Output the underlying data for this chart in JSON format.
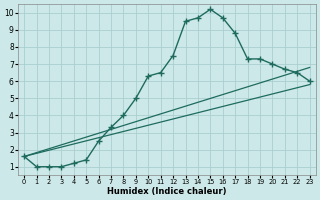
{
  "background_color": "#cce8e8",
  "grid_color": "#aacfcf",
  "line_color": "#1e6b5e",
  "xlabel": "Humidex (Indice chaleur)",
  "xlim": [
    -0.5,
    23.5
  ],
  "ylim": [
    0.5,
    10.5
  ],
  "curve_x": [
    0,
    1,
    2,
    3,
    4,
    5,
    6,
    7,
    8,
    9,
    10,
    11,
    12,
    13,
    14,
    15,
    16,
    17,
    18,
    19,
    20,
    21,
    22,
    23
  ],
  "curve_y": [
    1.6,
    1.0,
    1.0,
    1.0,
    1.2,
    1.4,
    2.5,
    3.3,
    4.0,
    5.0,
    6.3,
    6.5,
    7.5,
    9.5,
    9.7,
    10.2,
    9.7,
    8.8,
    7.3,
    7.3,
    7.0,
    6.7,
    6.5,
    6.0
  ],
  "line2_x": [
    0,
    23
  ],
  "line2_y": [
    1.6,
    6.8
  ],
  "line3_x": [
    0,
    23
  ],
  "line3_y": [
    1.6,
    5.8
  ]
}
